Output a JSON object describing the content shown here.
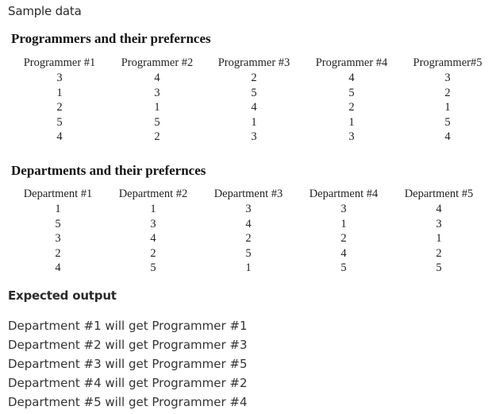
{
  "sample_heading": "Sample data",
  "programmers": {
    "title": "Programmers and their prefernces",
    "columns": [
      {
        "header": "Programmer #1",
        "values": [
          "3",
          "1",
          "2",
          "5",
          "4"
        ]
      },
      {
        "header": "Programmer #2",
        "values": [
          "4",
          "3",
          "1",
          "5",
          "2"
        ]
      },
      {
        "header": "Programmer #3",
        "values": [
          "2",
          "5",
          "4",
          "1",
          "3"
        ]
      },
      {
        "header": "Programmer #4",
        "values": [
          "4",
          "5",
          "2",
          "1",
          "3"
        ]
      },
      {
        "header": "Programmer#5",
        "values": [
          "3",
          "2",
          "1",
          "5",
          "4"
        ]
      }
    ]
  },
  "departments": {
    "title": "Departments and their prefernces",
    "columns": [
      {
        "header": "Department #1",
        "values": [
          "1",
          "5",
          "3",
          "2",
          "4"
        ]
      },
      {
        "header": "Department #2",
        "values": [
          "1",
          "3",
          "4",
          "2",
          "5"
        ]
      },
      {
        "header": "Department #3",
        "values": [
          "3",
          "4",
          "2",
          "5",
          "1"
        ]
      },
      {
        "header": "Department #4",
        "values": [
          "3",
          "1",
          "2",
          "4",
          "5"
        ]
      },
      {
        "header": "Department #5",
        "values": [
          "4",
          "3",
          "1",
          "2",
          "5"
        ]
      }
    ]
  },
  "expected": {
    "heading": "Expected output",
    "lines": [
      "Department #1 will get Programmer #1",
      "Department #2 will get Programmer #3",
      "Department #3 will get Programmer #5",
      "Department #4 will get Programmer #2",
      "Department #5 will get Programmer #4"
    ]
  }
}
